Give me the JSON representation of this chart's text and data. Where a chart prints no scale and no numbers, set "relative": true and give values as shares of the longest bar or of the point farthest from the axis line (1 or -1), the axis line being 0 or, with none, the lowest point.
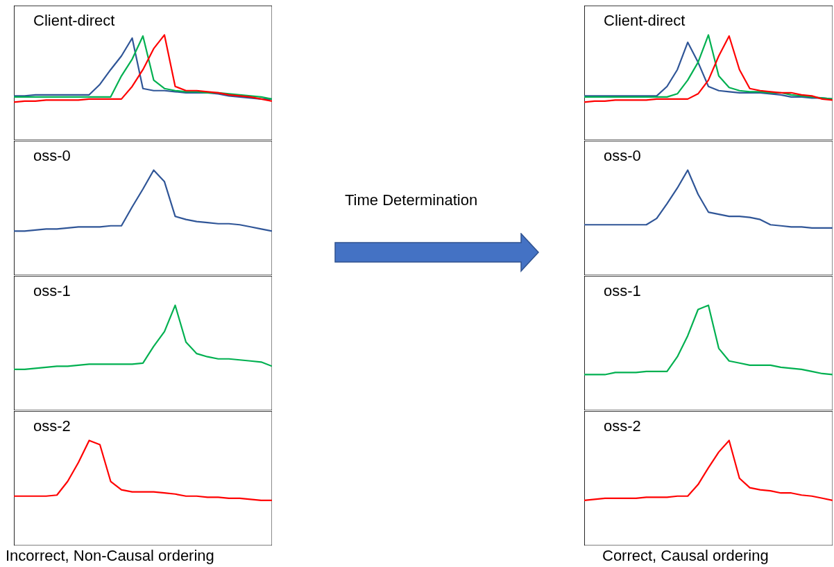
{
  "chart_data": [
    {
      "type": "line",
      "relative": true,
      "title": "Client-direct",
      "categories": [
        null,
        null,
        null,
        null,
        null,
        null,
        null,
        null,
        null,
        null,
        null,
        null,
        null,
        null,
        null,
        null,
        null,
        null,
        null,
        null,
        null,
        null,
        null,
        null,
        null
      ],
      "series": [
        {
          "color": "#2f5597",
          "values": [
            0.42,
            0.42,
            0.43,
            0.43,
            0.43,
            0.43,
            0.43,
            0.43,
            0.53,
            0.67,
            0.8,
            0.97,
            0.49,
            0.47,
            0.47,
            0.46,
            0.45,
            0.45,
            0.45,
            0.44,
            0.42,
            0.41,
            0.4,
            0.39,
            0.39
          ]
        },
        {
          "color": "#00b050",
          "values": [
            0.41,
            0.41,
            0.41,
            0.41,
            0.41,
            0.41,
            0.41,
            0.41,
            0.41,
            0.41,
            0.61,
            0.77,
            0.99,
            0.57,
            0.49,
            0.47,
            0.46,
            0.46,
            0.45,
            0.45,
            0.44,
            0.43,
            0.42,
            0.41,
            0.39
          ]
        },
        {
          "color": "#ff0000",
          "values": [
            0.36,
            0.37,
            0.37,
            0.38,
            0.38,
            0.38,
            0.38,
            0.39,
            0.39,
            0.39,
            0.39,
            0.51,
            0.67,
            0.87,
            1,
            0.51,
            0.47,
            0.47,
            0.46,
            0.45,
            0.43,
            0.42,
            0.41,
            0.39,
            0.37
          ]
        }
      ]
    },
    {
      "type": "line",
      "relative": true,
      "title": "oss-0",
      "categories": [
        null,
        null,
        null,
        null,
        null,
        null,
        null,
        null,
        null,
        null,
        null,
        null,
        null,
        null,
        null,
        null,
        null,
        null,
        null,
        null,
        null,
        null,
        null,
        null,
        null
      ],
      "series": [
        {
          "color": "#2f5597",
          "values": [
            0.42,
            0.42,
            0.43,
            0.44,
            0.44,
            0.45,
            0.46,
            0.46,
            0.46,
            0.47,
            0.47,
            0.65,
            0.82,
            1,
            0.89,
            0.56,
            0.53,
            0.51,
            0.5,
            0.49,
            0.49,
            0.48,
            0.46,
            0.44,
            0.42
          ]
        }
      ]
    },
    {
      "type": "line",
      "relative": true,
      "title": "oss-1",
      "categories": [
        null,
        null,
        null,
        null,
        null,
        null,
        null,
        null,
        null,
        null,
        null,
        null,
        null,
        null,
        null,
        null,
        null,
        null,
        null,
        null,
        null,
        null,
        null,
        null,
        null
      ],
      "series": [
        {
          "color": "#00b050",
          "values": [
            0.39,
            0.39,
            0.4,
            0.41,
            0.42,
            0.42,
            0.43,
            0.44,
            0.44,
            0.44,
            0.44,
            0.44,
            0.45,
            0.61,
            0.75,
            1,
            0.65,
            0.54,
            0.51,
            0.49,
            0.49,
            0.48,
            0.47,
            0.46,
            0.42
          ]
        }
      ]
    },
    {
      "type": "line",
      "relative": true,
      "title": "oss-2",
      "annotations": [
        "Incorrect, Non-Causal ordering"
      ],
      "categories": [
        null,
        null,
        null,
        null,
        null,
        null,
        null,
        null,
        null,
        null,
        null,
        null,
        null,
        null,
        null,
        null,
        null,
        null,
        null,
        null,
        null,
        null,
        null,
        null,
        null
      ],
      "series": [
        {
          "color": "#ff0000",
          "values": [
            0.47,
            0.47,
            0.47,
            0.47,
            0.48,
            0.61,
            0.79,
            1,
            0.96,
            0.61,
            0.53,
            0.51,
            0.51,
            0.51,
            0.5,
            0.49,
            0.47,
            0.47,
            0.46,
            0.46,
            0.45,
            0.45,
            0.44,
            0.43,
            0.43
          ]
        }
      ]
    },
    {
      "type": "line",
      "relative": true,
      "title": "Client-direct",
      "categories": [
        null,
        null,
        null,
        null,
        null,
        null,
        null,
        null,
        null,
        null,
        null,
        null,
        null,
        null,
        null,
        null,
        null,
        null,
        null,
        null,
        null,
        null,
        null,
        null,
        null
      ],
      "series": [
        {
          "color": "#2f5597",
          "values": [
            0.42,
            0.42,
            0.42,
            0.42,
            0.42,
            0.42,
            0.42,
            0.42,
            0.51,
            0.67,
            0.93,
            0.74,
            0.51,
            0.47,
            0.46,
            0.45,
            0.45,
            0.45,
            0.44,
            0.43,
            0.41,
            0.41,
            0.4,
            0.4,
            0.39
          ]
        },
        {
          "color": "#00b050",
          "values": [
            0.41,
            0.41,
            0.41,
            0.41,
            0.41,
            0.41,
            0.41,
            0.41,
            0.41,
            0.44,
            0.57,
            0.74,
            1,
            0.61,
            0.5,
            0.47,
            0.46,
            0.46,
            0.45,
            0.45,
            0.43,
            0.42,
            0.41,
            0.4,
            0.39
          ]
        },
        {
          "color": "#ff0000",
          "values": [
            0.36,
            0.37,
            0.37,
            0.38,
            0.38,
            0.38,
            0.38,
            0.39,
            0.39,
            0.39,
            0.39,
            0.44,
            0.57,
            0.8,
            0.99,
            0.67,
            0.49,
            0.47,
            0.46,
            0.45,
            0.45,
            0.43,
            0.42,
            0.39,
            0.38
          ]
        }
      ]
    },
    {
      "type": "line",
      "relative": true,
      "title": "oss-0",
      "categories": [
        null,
        null,
        null,
        null,
        null,
        null,
        null,
        null,
        null,
        null,
        null,
        null,
        null,
        null,
        null,
        null,
        null,
        null,
        null,
        null,
        null,
        null,
        null,
        null,
        null
      ],
      "series": [
        {
          "color": "#2f5597",
          "values": [
            0.48,
            0.48,
            0.48,
            0.48,
            0.48,
            0.48,
            0.48,
            0.54,
            0.68,
            0.83,
            1,
            0.77,
            0.6,
            0.58,
            0.56,
            0.56,
            0.55,
            0.53,
            0.48,
            0.47,
            0.46,
            0.46,
            0.45,
            0.45,
            0.45
          ]
        }
      ]
    },
    {
      "type": "line",
      "relative": true,
      "title": "oss-1",
      "categories": [
        null,
        null,
        null,
        null,
        null,
        null,
        null,
        null,
        null,
        null,
        null,
        null,
        null,
        null,
        null,
        null,
        null,
        null,
        null,
        null,
        null,
        null,
        null,
        null,
        null
      ],
      "series": [
        {
          "color": "#00b050",
          "values": [
            0.34,
            0.34,
            0.34,
            0.36,
            0.36,
            0.36,
            0.37,
            0.37,
            0.37,
            0.51,
            0.71,
            0.96,
            1,
            0.59,
            0.47,
            0.45,
            0.43,
            0.43,
            0.43,
            0.41,
            0.4,
            0.39,
            0.37,
            0.35,
            0.34
          ]
        }
      ]
    },
    {
      "type": "line",
      "relative": true,
      "title": "oss-2",
      "annotations": [
        "Correct, Causal ordering"
      ],
      "categories": [
        null,
        null,
        null,
        null,
        null,
        null,
        null,
        null,
        null,
        null,
        null,
        null,
        null,
        null,
        null,
        null,
        null,
        null,
        null,
        null,
        null,
        null,
        null,
        null,
        null
      ],
      "series": [
        {
          "color": "#ff0000",
          "values": [
            0.43,
            0.44,
            0.45,
            0.45,
            0.45,
            0.45,
            0.46,
            0.46,
            0.46,
            0.47,
            0.47,
            0.58,
            0.74,
            0.89,
            1,
            0.64,
            0.55,
            0.53,
            0.52,
            0.5,
            0.5,
            0.48,
            0.47,
            0.45,
            0.43
          ]
        }
      ]
    },
    {
      "type": "other",
      "title": "Time Determination"
    }
  ]
}
